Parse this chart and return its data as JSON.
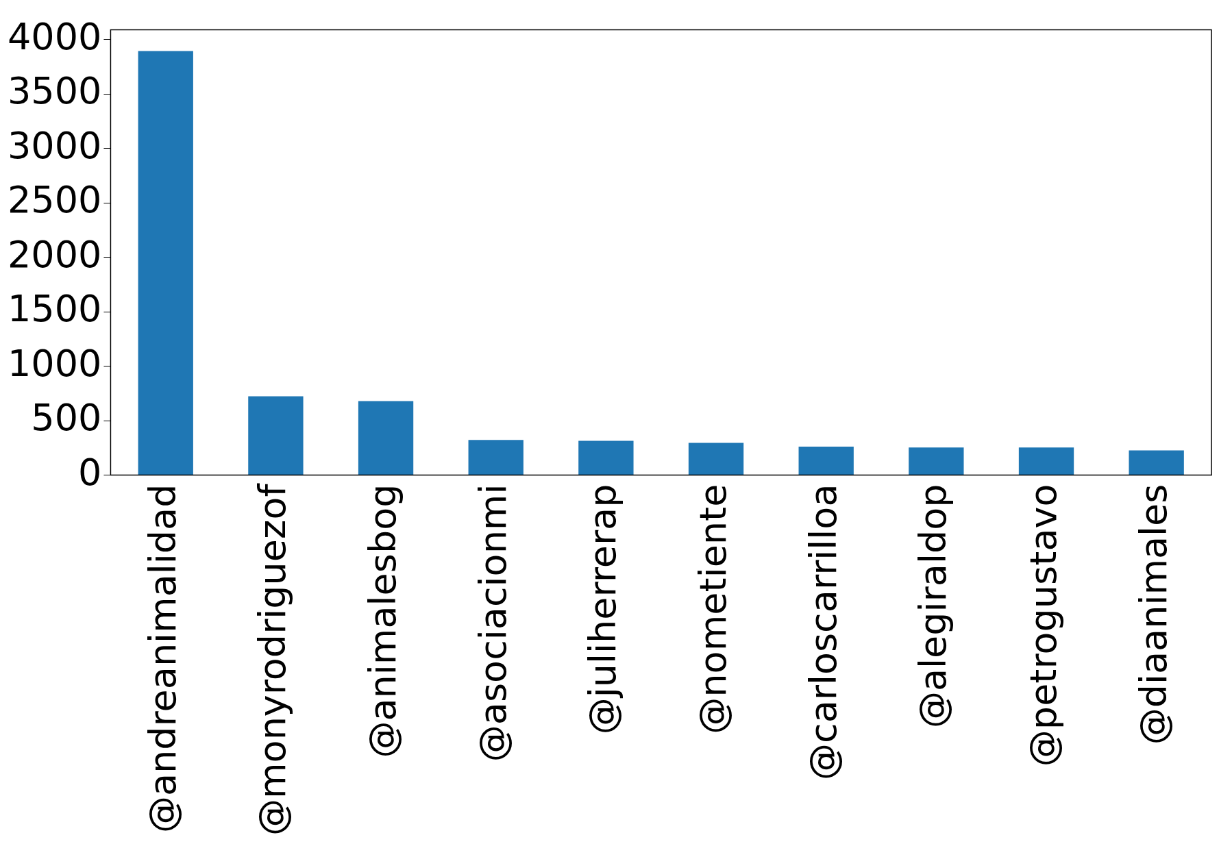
{
  "chart_data": {
    "type": "bar",
    "categories": [
      "@andreanimalidad",
      "@monyrodriguezof",
      "@animalesbog",
      "@asociacionmi",
      "@juliherrerap",
      "@nometiente",
      "@carloscarrilloa",
      "@alegiraldop",
      "@petrogustavo",
      "@diaanimales"
    ],
    "values": [
      3895,
      723,
      680,
      322,
      314,
      296,
      261,
      253,
      253,
      227
    ],
    "color": "#1f77b4",
    "ylim": [
      0,
      4090
    ],
    "yticks": [
      0,
      500,
      1000,
      1500,
      2000,
      2500,
      3000,
      3500,
      4000
    ],
    "grid": false,
    "legend": false
  }
}
